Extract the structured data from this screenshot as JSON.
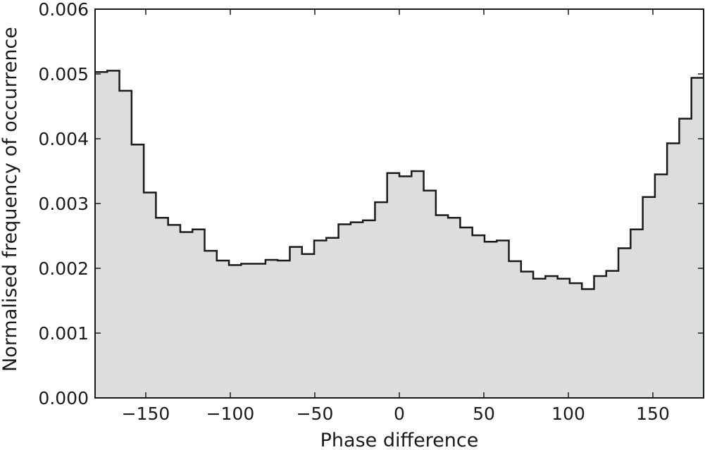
{
  "chart_data": {
    "type": "histogram",
    "title": "",
    "xlabel": "Phase difference",
    "ylabel": "Normalised frequency of occurrence",
    "xlim": [
      -180,
      180
    ],
    "ylim": [
      0,
      0.006
    ],
    "bin_width": 7.2,
    "x_ticks": [
      -150,
      -100,
      -50,
      0,
      50,
      100,
      150
    ],
    "x_tick_labels": [
      "−150",
      "−100",
      "−50",
      "0",
      "50",
      "100",
      "150"
    ],
    "y_ticks": [
      0,
      0.001,
      0.002,
      0.003,
      0.004,
      0.005,
      0.006
    ],
    "y_tick_labels": [
      "0.000",
      "0.001",
      "0.002",
      "0.003",
      "0.004",
      "0.005",
      "0.006"
    ],
    "grid": false,
    "fill_color": "#dcdddf",
    "line_color": "#1a1a1a",
    "bin_edges": [
      -180,
      -172.8,
      -165.6,
      -158.4,
      -151.2,
      -144,
      -136.8,
      -129.6,
      -122.4,
      -115.2,
      -108,
      -100.8,
      -93.6,
      -86.4,
      -79.2,
      -72,
      -64.8,
      -57.6,
      -50.4,
      -43.2,
      -36,
      -28.8,
      -21.6,
      -14.4,
      -7.2,
      0,
      7.2,
      14.4,
      21.6,
      28.8,
      36,
      43.2,
      50.4,
      57.6,
      64.8,
      72,
      79.2,
      86.4,
      93.6,
      100.8,
      108,
      115.2,
      122.4,
      129.6,
      136.8,
      144,
      151.2,
      158.4,
      165.6,
      172.8,
      180
    ],
    "values": [
      0.00503,
      0.00505,
      0.00474,
      0.00391,
      0.00317,
      0.00278,
      0.00267,
      0.00256,
      0.0026,
      0.00227,
      0.00212,
      0.00205,
      0.00207,
      0.00207,
      0.00213,
      0.00212,
      0.00233,
      0.00222,
      0.00243,
      0.00247,
      0.00268,
      0.00271,
      0.00274,
      0.00302,
      0.00347,
      0.00342,
      0.0035,
      0.0032,
      0.00282,
      0.00278,
      0.00263,
      0.00251,
      0.00241,
      0.00243,
      0.00211,
      0.00195,
      0.00184,
      0.00188,
      0.00184,
      0.00177,
      0.00168,
      0.00188,
      0.00196,
      0.00231,
      0.0026,
      0.0031,
      0.00345,
      0.00393,
      0.00431,
      0.00494
    ]
  }
}
